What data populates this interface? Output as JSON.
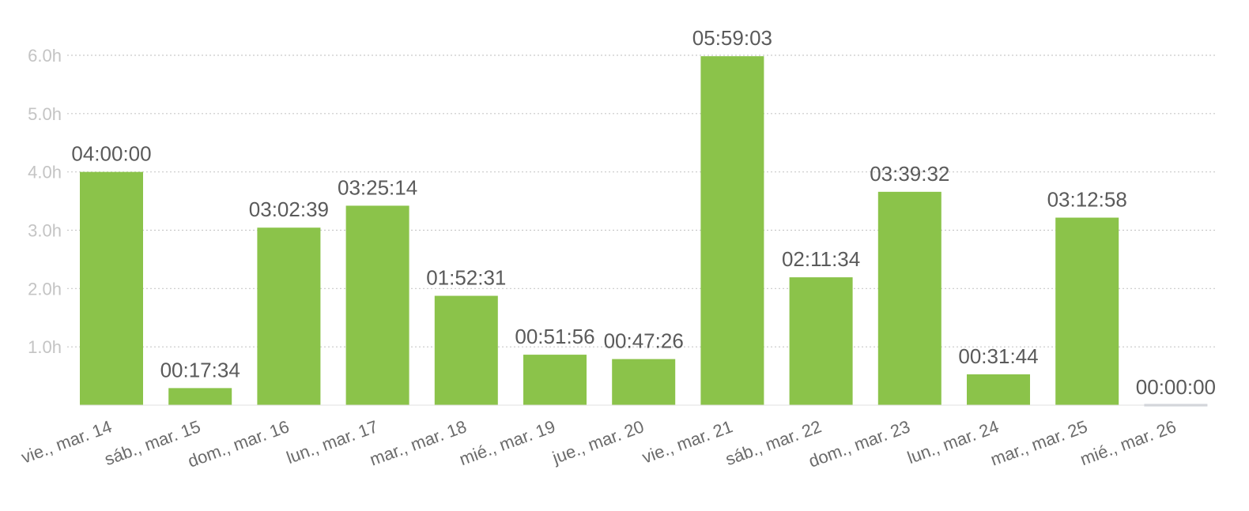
{
  "chart_data": {
    "type": "bar",
    "categories": [
      "vie., mar. 14",
      "sáb., mar. 15",
      "dom., mar. 16",
      "lun., mar. 17",
      "mar., mar. 18",
      "mié., mar. 19",
      "jue., mar. 20",
      "vie., mar. 21",
      "sáb., mar. 22",
      "dom., mar. 23",
      "lun., mar. 24",
      "mar., mar. 25",
      "mié., mar. 26"
    ],
    "values": [
      4.0,
      0.2928,
      3.0442,
      3.4206,
      1.8753,
      0.8656,
      0.7906,
      5.9842,
      2.1928,
      3.6589,
      0.5289,
      3.2161,
      0.0
    ],
    "data_labels": [
      "04:00:00",
      "00:17:34",
      "03:02:39",
      "03:25:14",
      "01:52:31",
      "00:51:56",
      "00:47:26",
      "05:59:03",
      "02:11:34",
      "03:39:32",
      "00:31:44",
      "03:12:58",
      "00:00:00"
    ],
    "yticks": [
      {
        "value": 1,
        "label": "1.0h"
      },
      {
        "value": 2,
        "label": "2.0h"
      },
      {
        "value": 3,
        "label": "3.0h"
      },
      {
        "value": 4,
        "label": "4.0h"
      },
      {
        "value": 5,
        "label": "5.0h"
      },
      {
        "value": 6,
        "label": "6.0h"
      }
    ],
    "ylim": [
      0,
      6
    ],
    "grid": true,
    "title": "",
    "xlabel": "",
    "ylabel": "",
    "colors": {
      "bar": "#8bc34a",
      "zero_bar": "#c8ccd4",
      "grid": "#c9c9c9"
    }
  }
}
